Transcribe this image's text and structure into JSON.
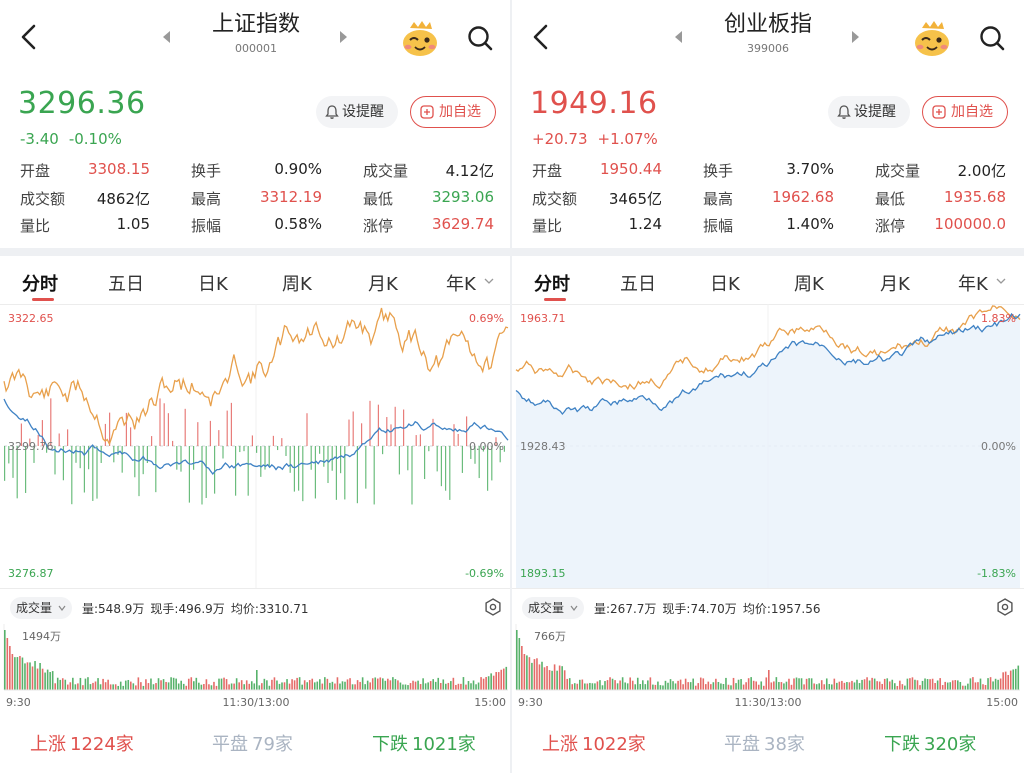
{
  "colors": {
    "up": "#e0514d",
    "down": "#3aa551",
    "flat": "#aab4c2",
    "orange_line": "#e8a04c",
    "blue_line": "#3f82c4"
  },
  "panels": [
    {
      "title": "上证指数",
      "code": "000001",
      "price": "3296.36",
      "change": "-3.40",
      "change_pct": "-0.10%",
      "direction": "down",
      "alert_label": "设提醒",
      "add_label": "加自选",
      "stats": [
        [
          {
            "label": "开盘",
            "value": "3308.15",
            "color": "up"
          },
          {
            "label": "换手",
            "value": "0.90%",
            "color": "neutral"
          },
          {
            "label": "成交量",
            "value": "4.12亿",
            "color": "neutral"
          }
        ],
        [
          {
            "label": "成交额",
            "value": "4862亿",
            "color": "neutral"
          },
          {
            "label": "最高",
            "value": "3312.19",
            "color": "up"
          },
          {
            "label": "最低",
            "value": "3293.06",
            "color": "down"
          }
        ],
        [
          {
            "label": "量比",
            "value": "1.05",
            "color": "neutral"
          },
          {
            "label": "振幅",
            "value": "0.58%",
            "color": "neutral"
          },
          {
            "label": "涨停",
            "value": "3629.74",
            "color": "up"
          }
        ]
      ],
      "tabs": [
        "分时",
        "五日",
        "日K",
        "周K",
        "月K",
        "年K"
      ],
      "chart": {
        "y_top": "3322.65",
        "y_mid": "3299.76",
        "y_bottom": "3276.87",
        "pct_top": "0.69%",
        "pct_mid": "0.00%",
        "pct_bottom": "-0.69%",
        "mid_level": 0.5,
        "area_fill": false,
        "show_bars": true
      },
      "volume": {
        "selector": "成交量",
        "vol": "量:548.9万",
        "current": "现手:496.9万",
        "avg": "均价:3310.71",
        "peak_label": "1494万",
        "t_start": "9:30",
        "t_mid": "11:30/13:00",
        "t_end": "15:00"
      },
      "breadth": {
        "up_label": "上涨",
        "up_count": "1224家",
        "flat_label": "平盘",
        "flat_count": "79家",
        "down_label": "下跌",
        "down_count": "1021家"
      }
    },
    {
      "title": "创业板指",
      "code": "399006",
      "price": "1949.16",
      "change": "+20.73",
      "change_pct": "+1.07%",
      "direction": "up",
      "alert_label": "设提醒",
      "add_label": "加自选",
      "stats": [
        [
          {
            "label": "开盘",
            "value": "1950.44",
            "color": "up"
          },
          {
            "label": "换手",
            "value": "3.70%",
            "color": "neutral"
          },
          {
            "label": "成交量",
            "value": "2.00亿",
            "color": "neutral"
          }
        ],
        [
          {
            "label": "成交额",
            "value": "3465亿",
            "color": "neutral"
          },
          {
            "label": "最高",
            "value": "1962.68",
            "color": "up"
          },
          {
            "label": "最低",
            "value": "1935.68",
            "color": "up"
          }
        ],
        [
          {
            "label": "量比",
            "value": "1.24",
            "color": "neutral"
          },
          {
            "label": "振幅",
            "value": "1.40%",
            "color": "neutral"
          },
          {
            "label": "涨停",
            "value": "100000.0",
            "color": "up"
          }
        ]
      ],
      "tabs": [
        "分时",
        "五日",
        "日K",
        "周K",
        "月K",
        "年K"
      ],
      "chart": {
        "y_top": "1963.71",
        "y_mid": "1928.43",
        "y_bottom": "1893.15",
        "pct_top": "1.83%",
        "pct_mid": "0.00%",
        "pct_bottom": "-1.83%",
        "mid_level": 0.5,
        "area_fill": true,
        "show_bars": false
      },
      "volume": {
        "selector": "成交量",
        "vol": "量:267.7万",
        "current": "现手:74.70万",
        "avg": "均价:1957.56",
        "peak_label": "766万",
        "t_start": "9:30",
        "t_mid": "11:30/13:00",
        "t_end": "15:00"
      },
      "breadth": {
        "up_label": "上涨",
        "up_count": "1022家",
        "flat_label": "平盘",
        "flat_count": "38家",
        "down_label": "下跌",
        "down_count": "320家"
      }
    }
  ]
}
